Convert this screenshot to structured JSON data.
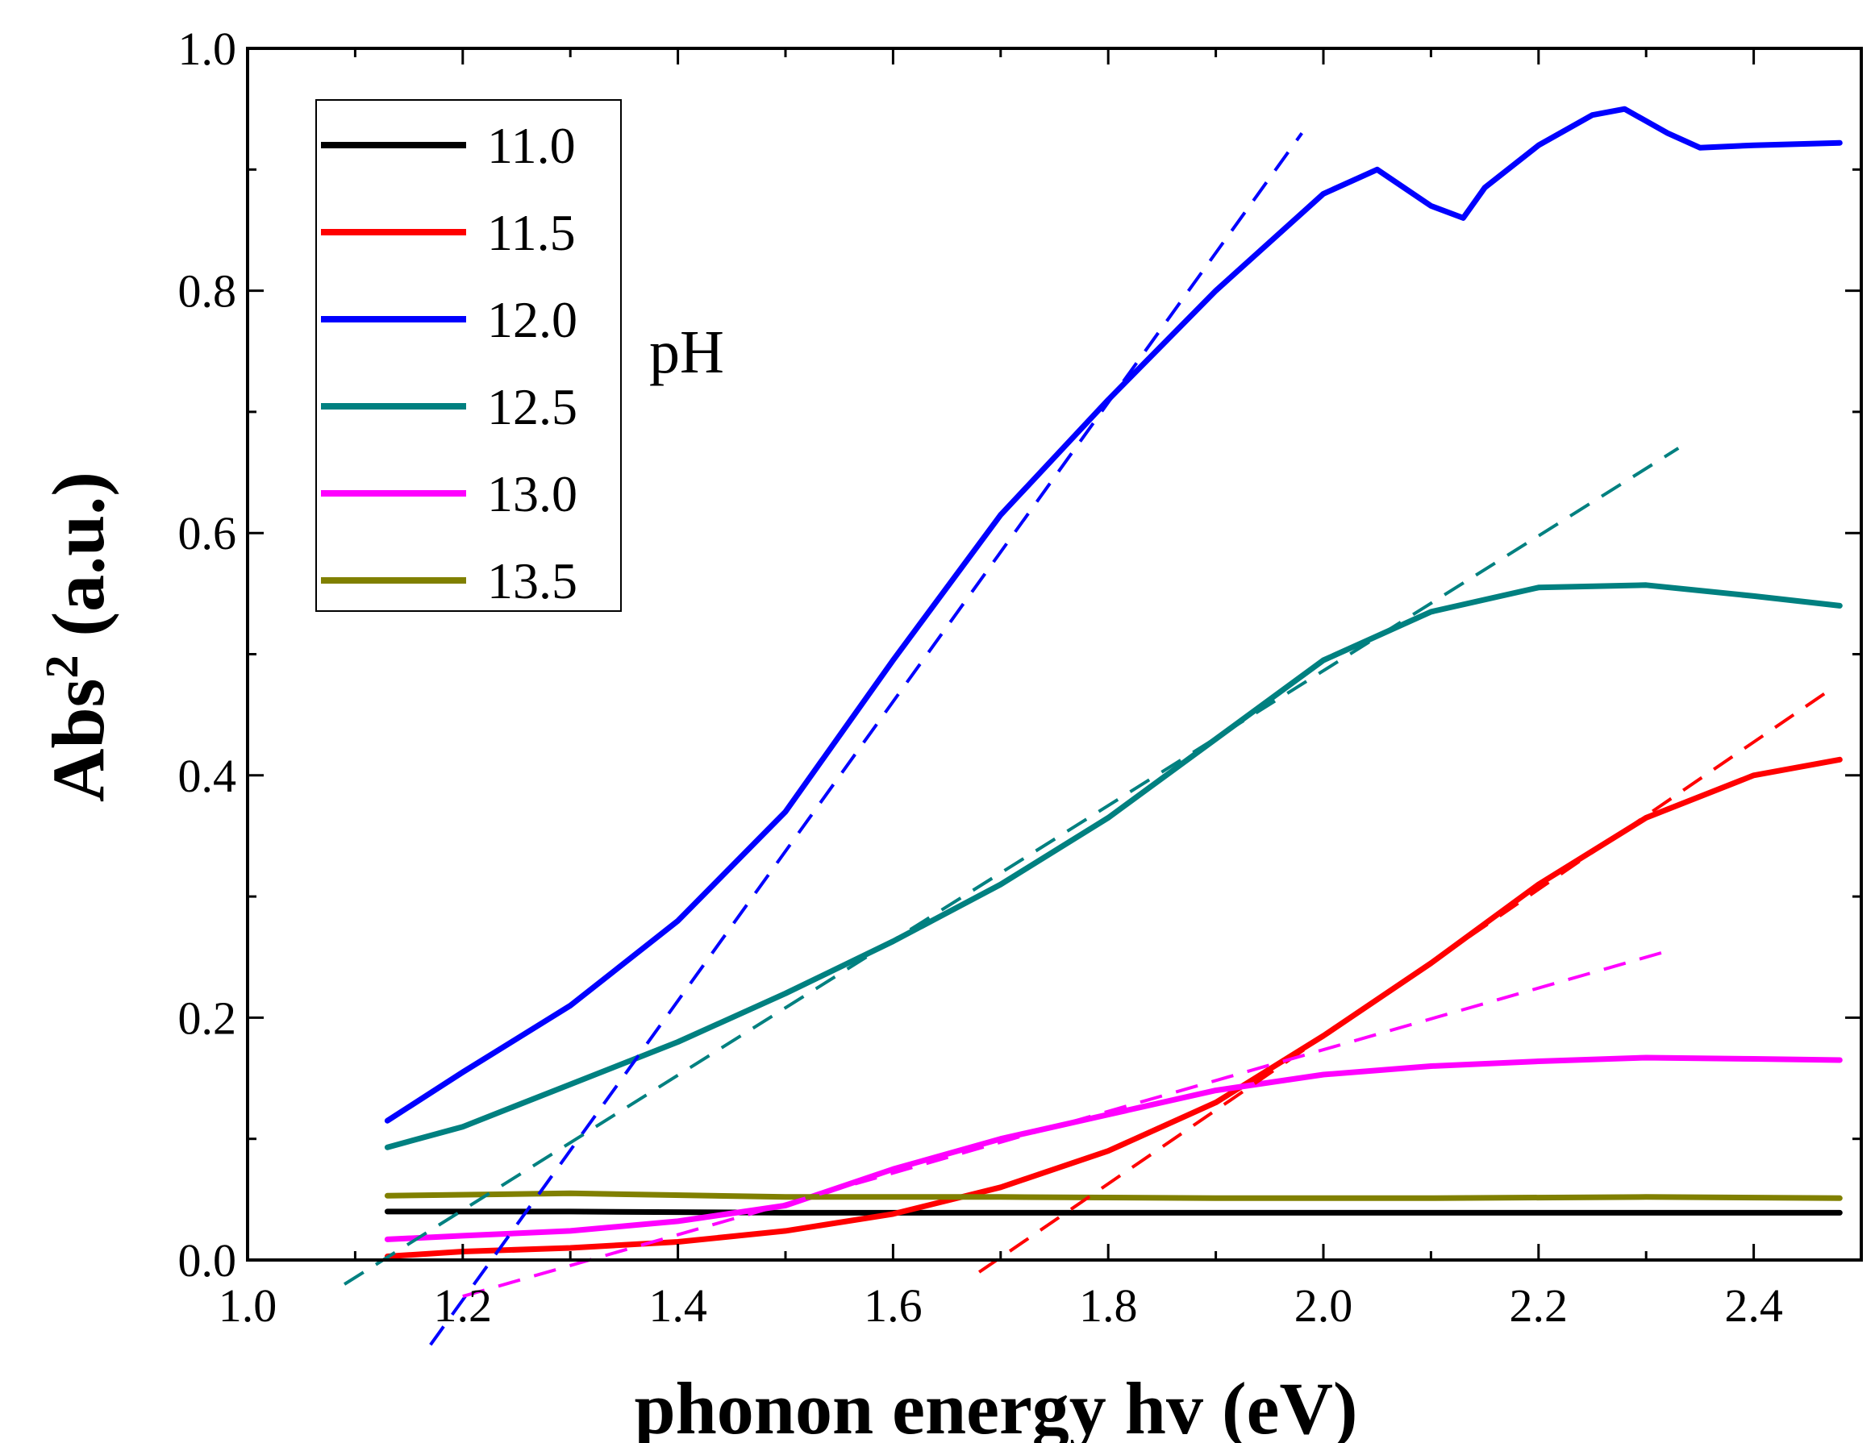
{
  "chart_data": {
    "type": "line",
    "title": "",
    "xlabel": "phonon energy hv (eV)",
    "ylabel": "Abs",
    "ylabel_sup": "2",
    "ylabel_unit": " (a.u.)",
    "xlim": [
      1.0,
      2.5
    ],
    "ylim": [
      0.0,
      1.0
    ],
    "xticks": [
      1.0,
      1.2,
      1.4,
      1.6,
      1.8,
      2.0,
      2.2,
      2.4
    ],
    "xtick_labels": [
      "1.0",
      "1.2",
      "1.4",
      "1.6",
      "1.8",
      "2.0",
      "2.2",
      "2.4"
    ],
    "yticks": [
      0.0,
      0.2,
      0.4,
      0.6,
      0.8,
      1.0
    ],
    "ytick_labels": [
      "0.0",
      "0.2",
      "0.4",
      "0.6",
      "0.8",
      "1.0"
    ],
    "legend_title": "pH",
    "legend_position": "top-left",
    "grid": false,
    "series": [
      {
        "name": "11.0",
        "color": "#000000",
        "x": [
          1.13,
          1.3,
          1.5,
          1.7,
          1.9,
          2.1,
          2.3,
          2.48
        ],
        "y": [
          0.04,
          0.04,
          0.039,
          0.039,
          0.039,
          0.039,
          0.039,
          0.039
        ],
        "fit": null
      },
      {
        "name": "11.5",
        "color": "#ff0000",
        "x": [
          1.13,
          1.2,
          1.3,
          1.4,
          1.5,
          1.6,
          1.7,
          1.8,
          1.9,
          2.0,
          2.1,
          2.2,
          2.3,
          2.4,
          2.48
        ],
        "y": [
          0.003,
          0.007,
          0.01,
          0.015,
          0.024,
          0.038,
          0.06,
          0.09,
          0.13,
          0.185,
          0.245,
          0.31,
          0.365,
          0.4,
          0.413
        ],
        "fit": {
          "x": [
            1.68,
            2.47
          ],
          "y": [
            -0.01,
            0.47
          ]
        }
      },
      {
        "name": "12.0",
        "color": "#0000ff",
        "x": [
          1.13,
          1.2,
          1.3,
          1.4,
          1.5,
          1.6,
          1.7,
          1.8,
          1.9,
          2.0,
          2.05,
          2.1,
          2.13,
          2.15,
          2.2,
          2.25,
          2.28,
          2.32,
          2.35,
          2.4,
          2.48
        ],
        "y": [
          0.115,
          0.155,
          0.21,
          0.28,
          0.37,
          0.495,
          0.615,
          0.71,
          0.8,
          0.88,
          0.9,
          0.87,
          0.86,
          0.885,
          0.92,
          0.945,
          0.95,
          0.93,
          0.918,
          0.92,
          0.922
        ],
        "fit": {
          "x": [
            1.17,
            1.98
          ],
          "y": [
            -0.07,
            0.93
          ]
        }
      },
      {
        "name": "12.5",
        "color": "#008080",
        "x": [
          1.13,
          1.2,
          1.3,
          1.4,
          1.5,
          1.6,
          1.7,
          1.8,
          1.9,
          2.0,
          2.1,
          2.2,
          2.3,
          2.4,
          2.48
        ],
        "y": [
          0.093,
          0.11,
          0.145,
          0.18,
          0.22,
          0.263,
          0.31,
          0.365,
          0.43,
          0.495,
          0.535,
          0.555,
          0.557,
          0.548,
          0.54
        ],
        "fit": {
          "x": [
            1.09,
            2.33
          ],
          "y": [
            -0.02,
            0.67
          ]
        }
      },
      {
        "name": "13.0",
        "color": "#ff00ff",
        "x": [
          1.13,
          1.2,
          1.3,
          1.4,
          1.5,
          1.6,
          1.7,
          1.8,
          1.9,
          2.0,
          2.1,
          2.2,
          2.3,
          2.4,
          2.48
        ],
        "y": [
          0.017,
          0.02,
          0.024,
          0.032,
          0.045,
          0.075,
          0.1,
          0.12,
          0.14,
          0.153,
          0.16,
          0.164,
          0.167,
          0.166,
          0.165
        ],
        "fit": {
          "x": [
            1.2,
            2.32
          ],
          "y": [
            -0.03,
            0.255
          ]
        }
      },
      {
        "name": "13.5",
        "color": "#808000",
        "x": [
          1.13,
          1.3,
          1.5,
          1.7,
          1.9,
          2.1,
          2.3,
          2.48
        ],
        "y": [
          0.053,
          0.055,
          0.052,
          0.052,
          0.051,
          0.051,
          0.052,
          0.051
        ],
        "fit": null
      }
    ]
  }
}
